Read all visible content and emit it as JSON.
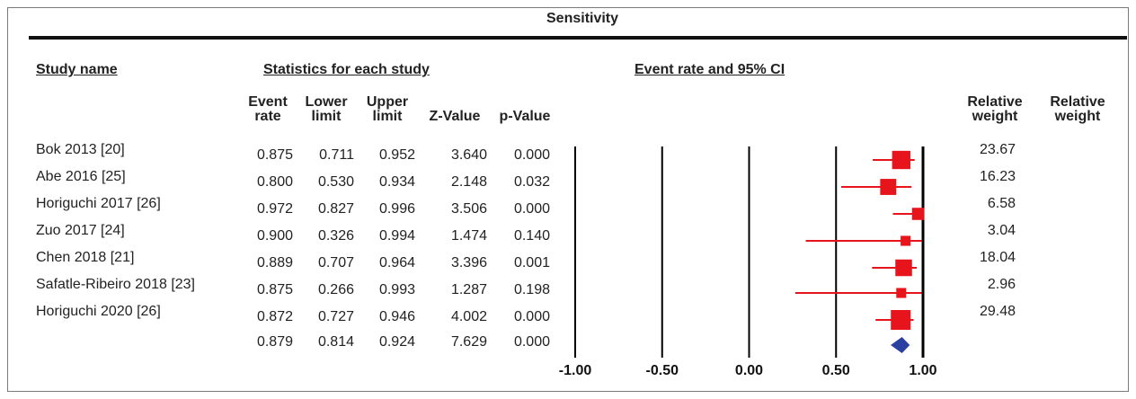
{
  "title": "Sensitivity",
  "section_headers": {
    "study": "Study name",
    "stats": "Statistics for each study",
    "plot": "Event rate and 95% CI"
  },
  "columns": {
    "event_rate": [
      "Event",
      "rate"
    ],
    "lower": [
      "Lower",
      "limit"
    ],
    "upper": [
      "Upper",
      "limit"
    ],
    "z": "Z-Value",
    "p": "p-Value",
    "weight1": [
      "Relative",
      "weight"
    ],
    "weight2": [
      "Relative",
      "weight"
    ]
  },
  "rows": [
    {
      "study": "Bok 2013 [20]",
      "rate": "0.875",
      "lower": "0.711",
      "upper": "0.952",
      "z": "3.640",
      "p": "0.000",
      "weight": "23.67"
    },
    {
      "study": "Abe 2016 [25]",
      "rate": "0.800",
      "lower": "0.530",
      "upper": "0.934",
      "z": "2.148",
      "p": "0.032",
      "weight": "16.23"
    },
    {
      "study": "Horiguchi 2017 [26]",
      "rate": "0.972",
      "lower": "0.827",
      "upper": "0.996",
      "z": "3.506",
      "p": "0.000",
      "weight": "6.58"
    },
    {
      "study": "Zuo 2017 [24]",
      "rate": "0.900",
      "lower": "0.326",
      "upper": "0.994",
      "z": "1.474",
      "p": "0.140",
      "weight": "3.04"
    },
    {
      "study": "Chen 2018 [21]",
      "rate": "0.889",
      "lower": "0.707",
      "upper": "0.964",
      "z": "3.396",
      "p": "0.001",
      "weight": "18.04"
    },
    {
      "study": "Safatle-Ribeiro 2018 [23]",
      "rate": "0.875",
      "lower": "0.266",
      "upper": "0.993",
      "z": "1.287",
      "p": "0.198",
      "weight": "2.96"
    },
    {
      "study": "Horiguchi 2020 [26]",
      "rate": "0.872",
      "lower": "0.727",
      "upper": "0.946",
      "z": "4.002",
      "p": "0.000",
      "weight": "29.48"
    }
  ],
  "summary": {
    "rate": "0.879",
    "lower": "0.814",
    "upper": "0.924",
    "z": "7.629",
    "p": "0.000"
  },
  "chart_data": {
    "type": "forest",
    "title": "Sensitivity",
    "xlabel": "Event rate and 95% CI",
    "xlim": [
      -1.0,
      1.0
    ],
    "xticks": [
      -1.0,
      -0.5,
      0.0,
      0.5,
      1.0
    ],
    "xtick_labels": [
      "-1.00",
      "-0.50",
      "0.00",
      "0.50",
      "1.00"
    ],
    "series": [
      {
        "study": "Bok 2013 [20]",
        "estimate": 0.875,
        "lower": 0.711,
        "upper": 0.952,
        "weight": 23.67
      },
      {
        "study": "Abe 2016 [25]",
        "estimate": 0.8,
        "lower": 0.53,
        "upper": 0.934,
        "weight": 16.23
      },
      {
        "study": "Horiguchi 2017 [26]",
        "estimate": 0.972,
        "lower": 0.827,
        "upper": 0.996,
        "weight": 6.58
      },
      {
        "study": "Zuo 2017 [24]",
        "estimate": 0.9,
        "lower": 0.326,
        "upper": 0.994,
        "weight": 3.04
      },
      {
        "study": "Chen 2018 [21]",
        "estimate": 0.889,
        "lower": 0.707,
        "upper": 0.964,
        "weight": 18.04
      },
      {
        "study": "Safatle-Ribeiro 2018 [23]",
        "estimate": 0.875,
        "lower": 0.266,
        "upper": 0.993,
        "weight": 2.96
      },
      {
        "study": "Horiguchi 2020 [26]",
        "estimate": 0.872,
        "lower": 0.727,
        "upper": 0.946,
        "weight": 29.48
      }
    ],
    "pooled": {
      "estimate": 0.879,
      "lower": 0.814,
      "upper": 0.924
    },
    "colors": {
      "study_marker": "#e8141b",
      "pooled_marker": "#2b3fa0",
      "axis": "#000000"
    },
    "grid": false
  }
}
